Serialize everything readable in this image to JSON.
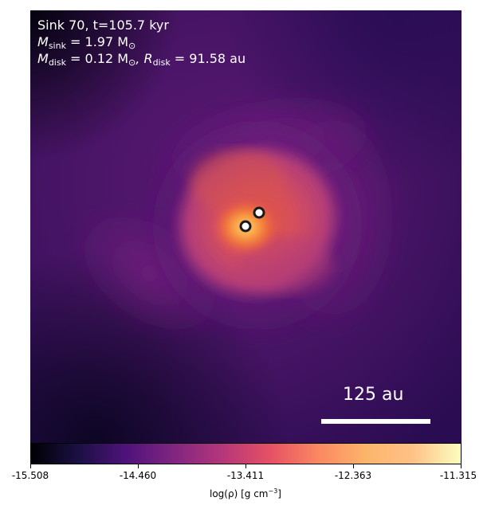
{
  "annotation": {
    "line1": "Sink 70, t=105.7 kyr",
    "line2": {
      "prefix": "M",
      "sub": "sink",
      "rest": " = 1.97 M",
      "sub2": "⊙"
    },
    "line3": {
      "m": "M",
      "msub": "disk",
      "mval": " = 0.12 M",
      "msun": "⊙",
      "r": ", R",
      "rsub": "disk",
      "rval": " = 91.58 au"
    }
  },
  "scalebar": {
    "label": "125 au"
  },
  "colorbar": {
    "ticks": [
      "-15.508",
      "-14.460",
      "-13.411",
      "-12.363",
      "-11.315"
    ],
    "label_prefix": "log(ρ) [g cm",
    "label_sup": "−3",
    "label_suffix": "]",
    "colors": [
      "#000004",
      "#1c1044",
      "#4f127b",
      "#812581",
      "#b5367a",
      "#e55064",
      "#fb8761",
      "#fcb46b",
      "#fec287",
      "#fcfdbf"
    ]
  },
  "sinks": {
    "count": 2,
    "marker_color": "#ffffff",
    "edge_color": "#1a1a1a"
  }
}
